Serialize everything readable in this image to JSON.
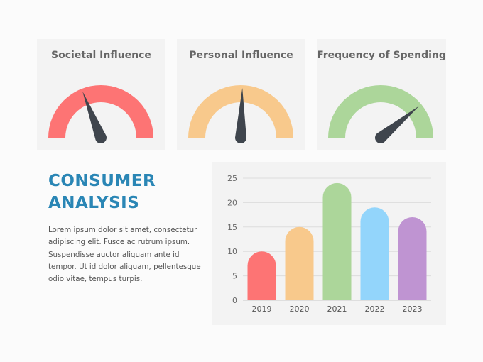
{
  "gauges": [
    {
      "title": "Societal Influence",
      "color": "#fd7474",
      "value": 0.38
    },
    {
      "title": "Personal Influence",
      "color": "#f8c98c",
      "value": 0.51
    },
    {
      "title": "Frequency of Spending",
      "color": "#acd69a",
      "value": 0.78
    }
  ],
  "needle_color": "#3f454d",
  "heading": {
    "line1": "CONSUMER",
    "line2": "ANALYSIS"
  },
  "body": "Lorem ipsum dolor sit amet, consectetur adipiscing elit. Fusce ac rutrum ipsum. Suspendisse auctor aliquam ante id tempor. Ut id dolor aliquam, pellentesque odio vitae, tempus turpis.",
  "chart_data": {
    "type": "bar",
    "categories": [
      "2019",
      "2020",
      "2021",
      "2022",
      "2023"
    ],
    "values": [
      10,
      15,
      24,
      19,
      17
    ],
    "colors": [
      "#fd7474",
      "#f8c98c",
      "#acd69a",
      "#93d5fb",
      "#bf94d2"
    ],
    "yticks": [
      "0",
      "5",
      "10",
      "15",
      "20",
      "25"
    ],
    "ylim": [
      0,
      25
    ],
    "grid": true,
    "title": "",
    "xlabel": "",
    "ylabel": ""
  }
}
